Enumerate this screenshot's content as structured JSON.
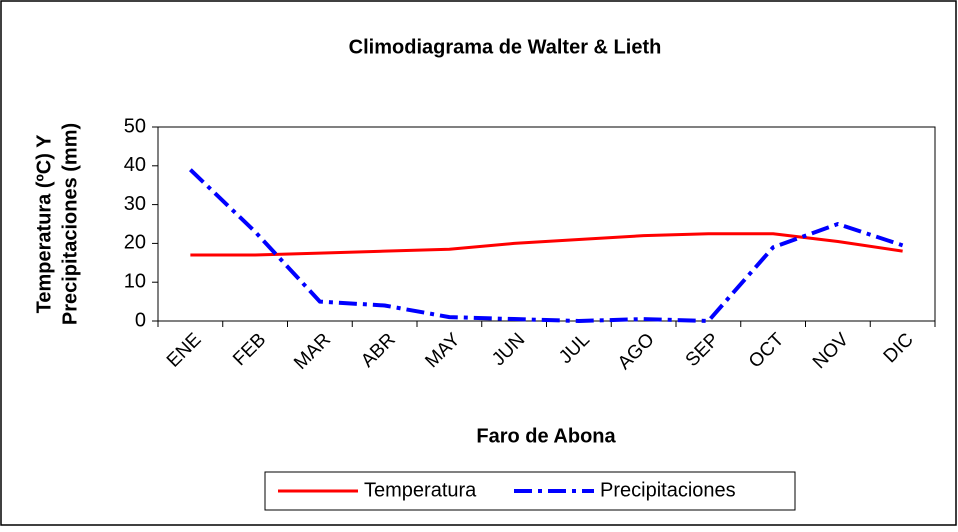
{
  "chart_data": {
    "type": "line",
    "title": "Climodiagrama de Walter & Lieth",
    "y_label": [
      "Temperatura (ºC) Y",
      "Precipitaciones (mm)"
    ],
    "x_label": "Faro de Abona",
    "categories": [
      "ENE",
      "FEB",
      "MAR",
      "ABR",
      "MAY",
      "JUN",
      "JUL",
      "AGO",
      "SEP",
      "OCT",
      "NOV",
      "DIC"
    ],
    "series": [
      {
        "name": "Temperatura",
        "color": "#ff0000",
        "dash": "solid",
        "values": [
          17,
          17,
          17.5,
          18,
          18.5,
          20,
          21,
          22,
          22.5,
          22.5,
          20.5,
          18
        ]
      },
      {
        "name": "Precipitaciones",
        "color": "#0000ff",
        "dash": "dashdot",
        "values": [
          39,
          23,
          5,
          4,
          1,
          0.5,
          0,
          0.5,
          0,
          19,
          25,
          19.5
        ]
      }
    ],
    "ylim": [
      0,
      50
    ],
    "yticks": [
      0,
      10,
      20,
      30,
      40,
      50
    ],
    "grid": false,
    "legend": "bottom"
  }
}
